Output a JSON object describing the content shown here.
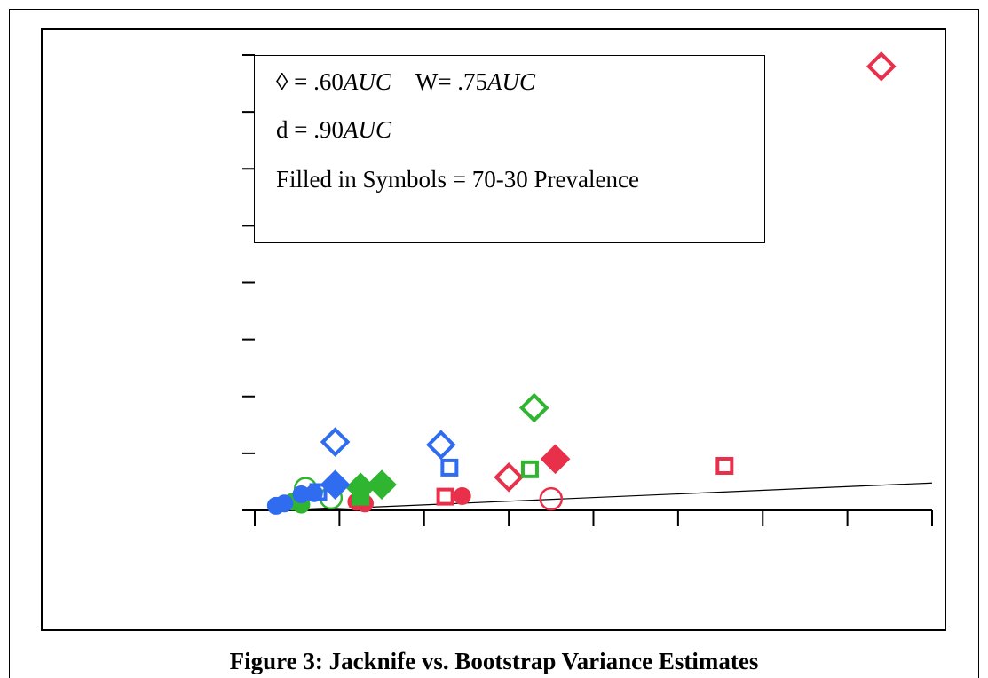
{
  "caption": "Figure 3: Jacknife vs. Bootstrap Variance Estimates",
  "legend": {
    "line1": {
      "a_symbol": "◊",
      "a_eq": " = .60",
      "a_auc": "AUC",
      "b_symbol": "W",
      "b_eq": "= .75",
      "b_auc": "AUC"
    },
    "line2": {
      "symbol": "d",
      "eq": " = .90",
      "auc": "AUC"
    },
    "line3": "Filled in Symbols = 70-30 Prevalence"
  },
  "colors": {
    "auc_060": "#e8304a",
    "auc_075": "#2fb52f",
    "auc_090": "#2f6cf0"
  },
  "chart_data": {
    "type": "scatter",
    "title": "",
    "xlabel": "",
    "ylabel": "",
    "xlim": [
      0,
      8
    ],
    "ylim": [
      0,
      8
    ],
    "x_ticks": 8,
    "y_ticks": 8,
    "tick_labels_visible": false,
    "grid": false,
    "reference_line": {
      "x": [
        0.5,
        8.0
      ],
      "y": [
        0.0,
        0.48
      ]
    },
    "series": [
      {
        "color_key": "auc_060",
        "shape": "diamond",
        "filled": false,
        "points": [
          [
            7.4,
            7.8
          ],
          [
            3.0,
            0.58
          ]
        ]
      },
      {
        "color_key": "auc_060",
        "shape": "diamond",
        "filled": true,
        "points": [
          [
            3.55,
            0.9
          ]
        ]
      },
      {
        "color_key": "auc_060",
        "shape": "square",
        "filled": false,
        "points": [
          [
            5.55,
            0.78
          ],
          [
            2.25,
            0.24
          ]
        ]
      },
      {
        "color_key": "auc_060",
        "shape": "circle",
        "filled": false,
        "points": [
          [
            3.5,
            0.2
          ]
        ]
      },
      {
        "color_key": "auc_060",
        "shape": "circle",
        "filled": true,
        "points": [
          [
            2.45,
            0.25
          ],
          [
            1.3,
            0.12
          ],
          [
            1.2,
            0.15
          ]
        ]
      },
      {
        "color_key": "auc_075",
        "shape": "diamond",
        "filled": false,
        "points": [
          [
            3.3,
            1.8
          ]
        ]
      },
      {
        "color_key": "auc_075",
        "shape": "diamond",
        "filled": true,
        "points": [
          [
            1.5,
            0.45
          ],
          [
            1.25,
            0.4
          ]
        ]
      },
      {
        "color_key": "auc_075",
        "shape": "square",
        "filled": false,
        "points": [
          [
            3.25,
            0.72
          ]
        ]
      },
      {
        "color_key": "auc_075",
        "shape": "square",
        "filled": true,
        "points": [
          [
            1.25,
            0.24
          ]
        ]
      },
      {
        "color_key": "auc_075",
        "shape": "circle",
        "filled": false,
        "points": [
          [
            0.6,
            0.38
          ],
          [
            0.9,
            0.22
          ]
        ]
      },
      {
        "color_key": "auc_075",
        "shape": "circle",
        "filled": true,
        "points": [
          [
            0.55,
            0.1
          ],
          [
            0.45,
            0.15
          ]
        ]
      },
      {
        "color_key": "auc_090",
        "shape": "diamond",
        "filled": false,
        "points": [
          [
            0.95,
            1.2
          ],
          [
            2.2,
            1.15
          ]
        ]
      },
      {
        "color_key": "auc_090",
        "shape": "diamond",
        "filled": true,
        "points": [
          [
            0.95,
            0.45
          ]
        ]
      },
      {
        "color_key": "auc_090",
        "shape": "square",
        "filled": false,
        "points": [
          [
            2.3,
            0.75
          ],
          [
            0.75,
            0.32
          ]
        ]
      },
      {
        "color_key": "auc_090",
        "shape": "circle",
        "filled": true,
        "points": [
          [
            0.35,
            0.12
          ],
          [
            0.25,
            0.08
          ],
          [
            0.55,
            0.28
          ],
          [
            0.7,
            0.3
          ]
        ]
      }
    ]
  }
}
